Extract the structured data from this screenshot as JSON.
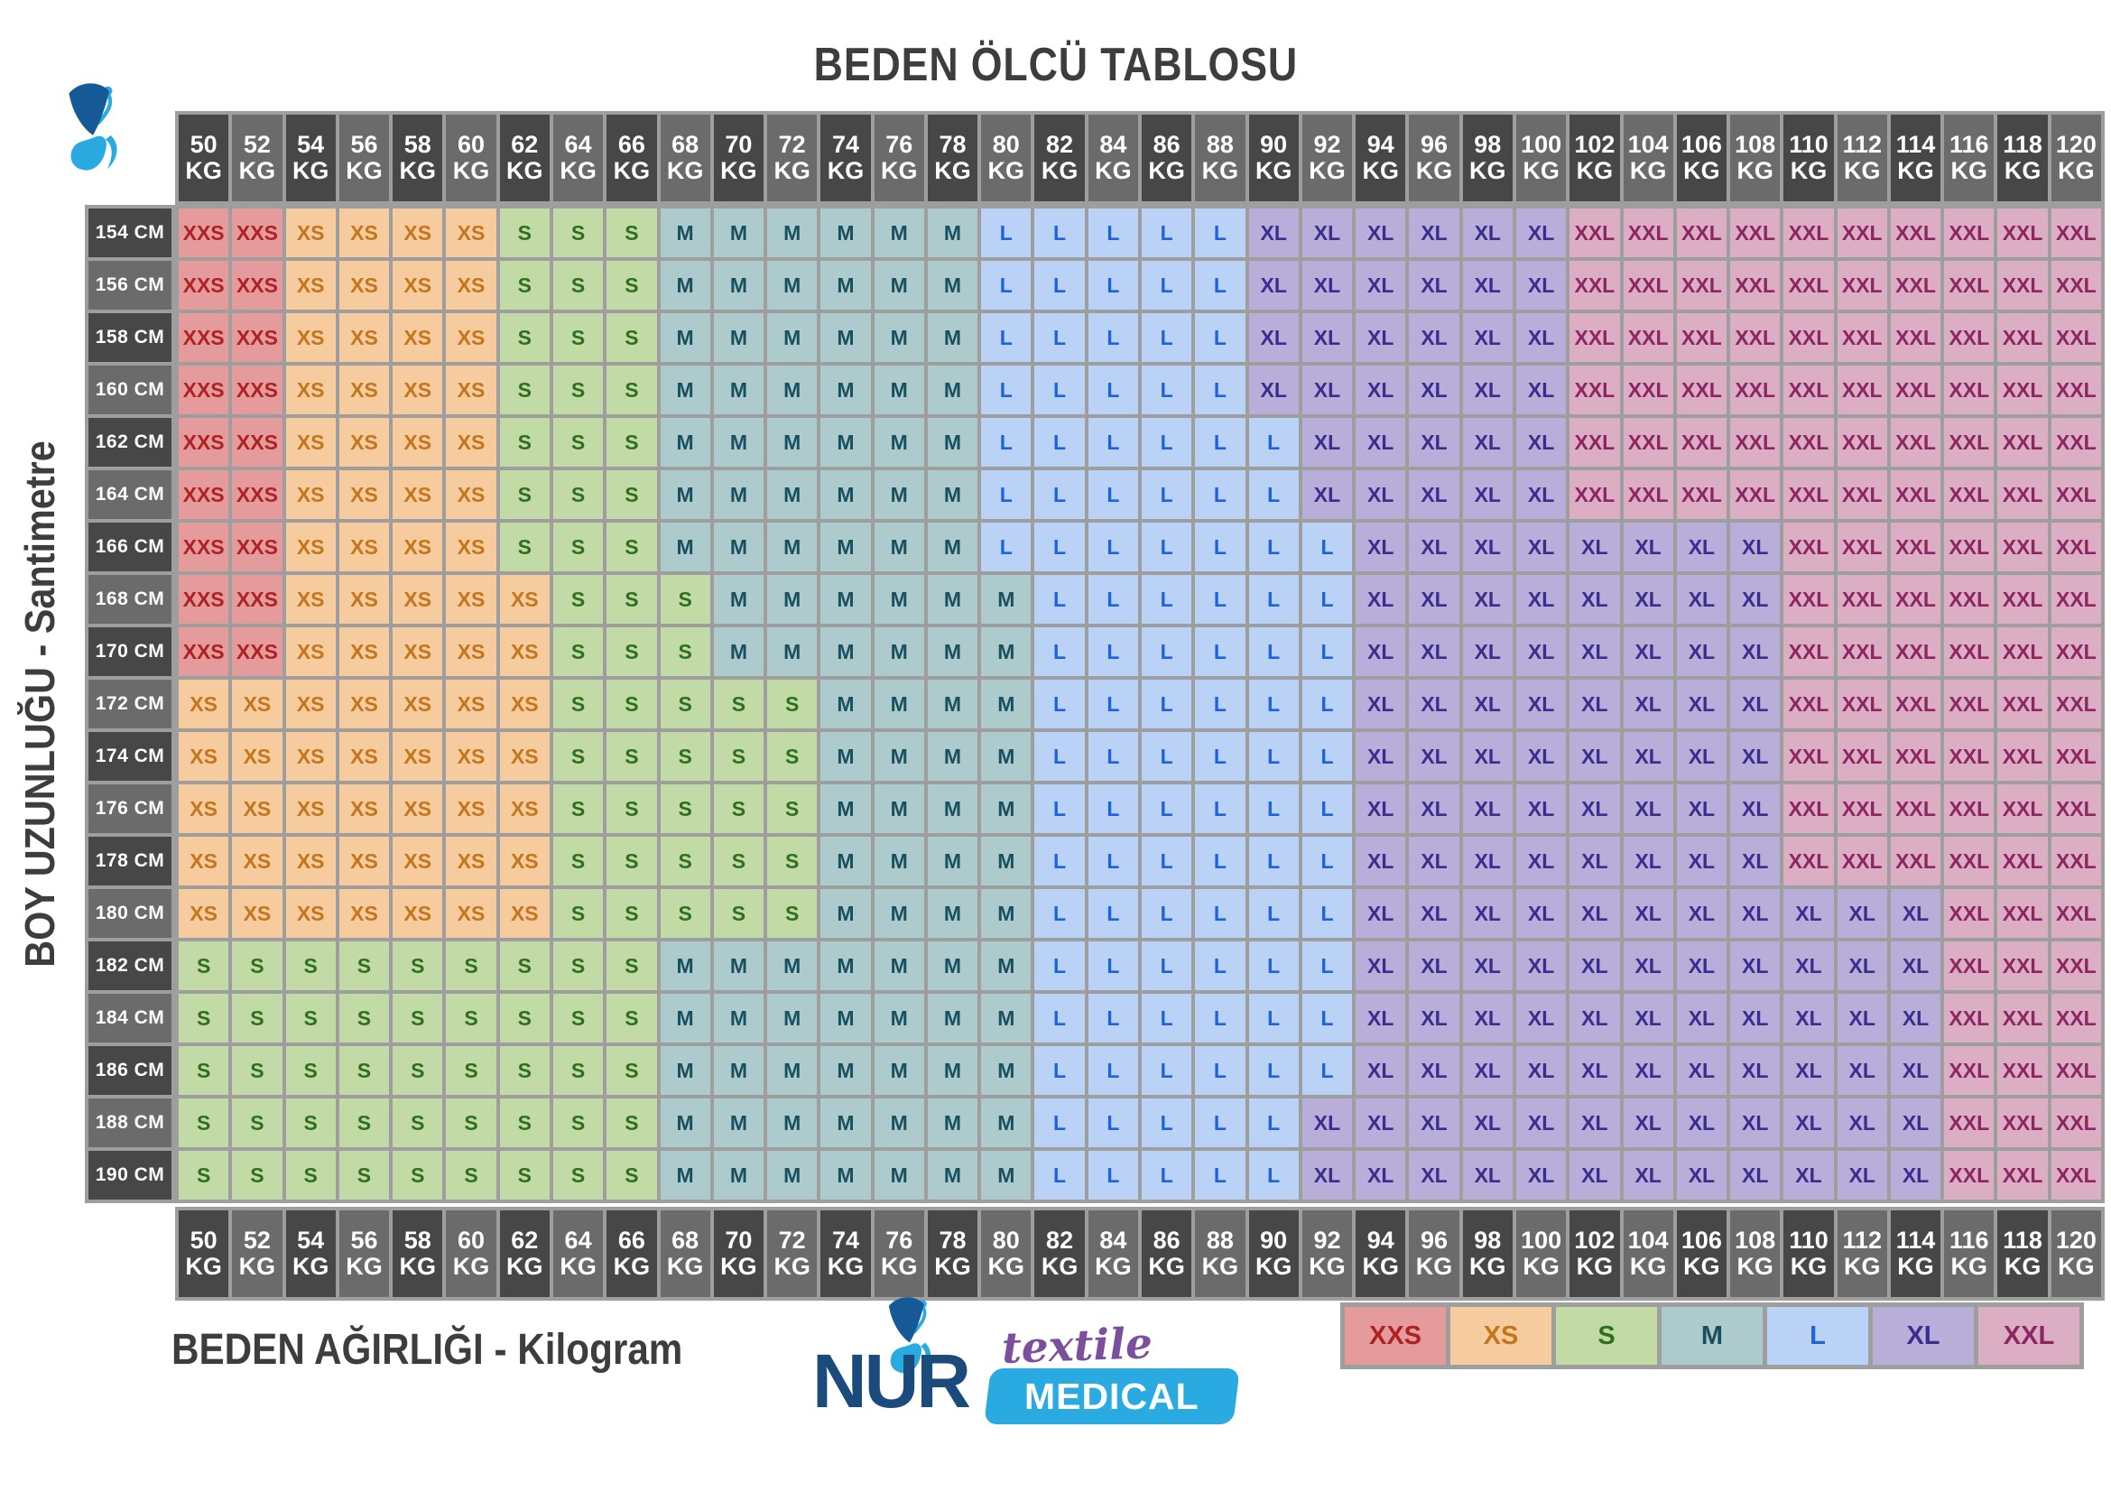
{
  "chart_data": {
    "type": "heatmap",
    "title": "BEDEN ÖLCÜ TABLOSU",
    "xlabel": "BEDEN AĞIRLIĞI - Kilogram",
    "ylabel": "BOY UZUNLUĞU - Santimetre",
    "x_unit": "KG",
    "y_unit": "CM",
    "x_categories": [
      50,
      52,
      54,
      56,
      58,
      60,
      62,
      64,
      66,
      68,
      70,
      72,
      74,
      76,
      78,
      80,
      82,
      84,
      86,
      88,
      90,
      92,
      94,
      96,
      98,
      100,
      102,
      104,
      106,
      108,
      110,
      112,
      114,
      116,
      118,
      120
    ],
    "y_categories": [
      154,
      156,
      158,
      160,
      162,
      164,
      166,
      168,
      170,
      172,
      174,
      176,
      178,
      180,
      182,
      184,
      186,
      188,
      190
    ],
    "legend": [
      "XXS",
      "XS",
      "S",
      "M",
      "L",
      "XL",
      "XXL"
    ],
    "legend_position": "bottom-right",
    "matrix": [
      [
        "XXS",
        "XXS",
        "XS",
        "XS",
        "XS",
        "XS",
        "S",
        "S",
        "S",
        "M",
        "M",
        "M",
        "M",
        "M",
        "M",
        "L",
        "L",
        "L",
        "L",
        "L",
        "XL",
        "XL",
        "XL",
        "XL",
        "XL",
        "XL",
        "XXL",
        "XXL",
        "XXL",
        "XXL",
        "XXL",
        "XXL",
        "XXL",
        "XXL",
        "XXL",
        "XXL"
      ],
      [
        "XXS",
        "XXS",
        "XS",
        "XS",
        "XS",
        "XS",
        "S",
        "S",
        "S",
        "M",
        "M",
        "M",
        "M",
        "M",
        "M",
        "L",
        "L",
        "L",
        "L",
        "L",
        "XL",
        "XL",
        "XL",
        "XL",
        "XL",
        "XL",
        "XXL",
        "XXL",
        "XXL",
        "XXL",
        "XXL",
        "XXL",
        "XXL",
        "XXL",
        "XXL",
        "XXL"
      ],
      [
        "XXS",
        "XXS",
        "XS",
        "XS",
        "XS",
        "XS",
        "S",
        "S",
        "S",
        "M",
        "M",
        "M",
        "M",
        "M",
        "M",
        "L",
        "L",
        "L",
        "L",
        "L",
        "XL",
        "XL",
        "XL",
        "XL",
        "XL",
        "XL",
        "XXL",
        "XXL",
        "XXL",
        "XXL",
        "XXL",
        "XXL",
        "XXL",
        "XXL",
        "XXL",
        "XXL"
      ],
      [
        "XXS",
        "XXS",
        "XS",
        "XS",
        "XS",
        "XS",
        "S",
        "S",
        "S",
        "M",
        "M",
        "M",
        "M",
        "M",
        "M",
        "L",
        "L",
        "L",
        "L",
        "L",
        "XL",
        "XL",
        "XL",
        "XL",
        "XL",
        "XL",
        "XXL",
        "XXL",
        "XXL",
        "XXL",
        "XXL",
        "XXL",
        "XXL",
        "XXL",
        "XXL",
        "XXL"
      ],
      [
        "XXS",
        "XXS",
        "XS",
        "XS",
        "XS",
        "XS",
        "S",
        "S",
        "S",
        "M",
        "M",
        "M",
        "M",
        "M",
        "M",
        "L",
        "L",
        "L",
        "L",
        "L",
        "L",
        "XL",
        "XL",
        "XL",
        "XL",
        "XL",
        "XXL",
        "XXL",
        "XXL",
        "XXL",
        "XXL",
        "XXL",
        "XXL",
        "XXL",
        "XXL",
        "XXL"
      ],
      [
        "XXS",
        "XXS",
        "XS",
        "XS",
        "XS",
        "XS",
        "S",
        "S",
        "S",
        "M",
        "M",
        "M",
        "M",
        "M",
        "M",
        "L",
        "L",
        "L",
        "L",
        "L",
        "L",
        "XL",
        "XL",
        "XL",
        "XL",
        "XL",
        "XXL",
        "XXL",
        "XXL",
        "XXL",
        "XXL",
        "XXL",
        "XXL",
        "XXL",
        "XXL",
        "XXL"
      ],
      [
        "XXS",
        "XXS",
        "XS",
        "XS",
        "XS",
        "XS",
        "S",
        "S",
        "S",
        "M",
        "M",
        "M",
        "M",
        "M",
        "M",
        "L",
        "L",
        "L",
        "L",
        "L",
        "L",
        "L",
        "XL",
        "XL",
        "XL",
        "XL",
        "XL",
        "XL",
        "XL",
        "XL",
        "XXL",
        "XXL",
        "XXL",
        "XXL",
        "XXL",
        "XXL"
      ],
      [
        "XXS",
        "XXS",
        "XS",
        "XS",
        "XS",
        "XS",
        "XS",
        "S",
        "S",
        "S",
        "M",
        "M",
        "M",
        "M",
        "M",
        "M",
        "L",
        "L",
        "L",
        "L",
        "L",
        "L",
        "XL",
        "XL",
        "XL",
        "XL",
        "XL",
        "XL",
        "XL",
        "XL",
        "XXL",
        "XXL",
        "XXL",
        "XXL",
        "XXL",
        "XXL"
      ],
      [
        "XXS",
        "XXS",
        "XS",
        "XS",
        "XS",
        "XS",
        "XS",
        "S",
        "S",
        "S",
        "M",
        "M",
        "M",
        "M",
        "M",
        "M",
        "L",
        "L",
        "L",
        "L",
        "L",
        "L",
        "XL",
        "XL",
        "XL",
        "XL",
        "XL",
        "XL",
        "XL",
        "XL",
        "XXL",
        "XXL",
        "XXL",
        "XXL",
        "XXL",
        "XXL"
      ],
      [
        "XS",
        "XS",
        "XS",
        "XS",
        "XS",
        "XS",
        "XS",
        "S",
        "S",
        "S",
        "S",
        "S",
        "M",
        "M",
        "M",
        "M",
        "L",
        "L",
        "L",
        "L",
        "L",
        "L",
        "XL",
        "XL",
        "XL",
        "XL",
        "XL",
        "XL",
        "XL",
        "XL",
        "XXL",
        "XXL",
        "XXL",
        "XXL",
        "XXL",
        "XXL"
      ],
      [
        "XS",
        "XS",
        "XS",
        "XS",
        "XS",
        "XS",
        "XS",
        "S",
        "S",
        "S",
        "S",
        "S",
        "M",
        "M",
        "M",
        "M",
        "L",
        "L",
        "L",
        "L",
        "L",
        "L",
        "XL",
        "XL",
        "XL",
        "XL",
        "XL",
        "XL",
        "XL",
        "XL",
        "XXL",
        "XXL",
        "XXL",
        "XXL",
        "XXL",
        "XXL"
      ],
      [
        "XS",
        "XS",
        "XS",
        "XS",
        "XS",
        "XS",
        "XS",
        "S",
        "S",
        "S",
        "S",
        "S",
        "M",
        "M",
        "M",
        "M",
        "L",
        "L",
        "L",
        "L",
        "L",
        "L",
        "XL",
        "XL",
        "XL",
        "XL",
        "XL",
        "XL",
        "XL",
        "XL",
        "XXL",
        "XXL",
        "XXL",
        "XXL",
        "XXL",
        "XXL"
      ],
      [
        "XS",
        "XS",
        "XS",
        "XS",
        "XS",
        "XS",
        "XS",
        "S",
        "S",
        "S",
        "S",
        "S",
        "M",
        "M",
        "M",
        "M",
        "L",
        "L",
        "L",
        "L",
        "L",
        "L",
        "XL",
        "XL",
        "XL",
        "XL",
        "XL",
        "XL",
        "XL",
        "XL",
        "XXL",
        "XXL",
        "XXL",
        "XXL",
        "XXL",
        "XXL"
      ],
      [
        "XS",
        "XS",
        "XS",
        "XS",
        "XS",
        "XS",
        "XS",
        "S",
        "S",
        "S",
        "S",
        "S",
        "M",
        "M",
        "M",
        "M",
        "L",
        "L",
        "L",
        "L",
        "L",
        "L",
        "XL",
        "XL",
        "XL",
        "XL",
        "XL",
        "XL",
        "XL",
        "XL",
        "XL",
        "XL",
        "XL",
        "XXL",
        "XXL",
        "XXL"
      ],
      [
        "S",
        "S",
        "S",
        "S",
        "S",
        "S",
        "S",
        "S",
        "S",
        "M",
        "M",
        "M",
        "M",
        "M",
        "M",
        "M",
        "L",
        "L",
        "L",
        "L",
        "L",
        "L",
        "XL",
        "XL",
        "XL",
        "XL",
        "XL",
        "XL",
        "XL",
        "XL",
        "XL",
        "XL",
        "XL",
        "XXL",
        "XXL",
        "XXL"
      ],
      [
        "S",
        "S",
        "S",
        "S",
        "S",
        "S",
        "S",
        "S",
        "S",
        "M",
        "M",
        "M",
        "M",
        "M",
        "M",
        "M",
        "L",
        "L",
        "L",
        "L",
        "L",
        "L",
        "XL",
        "XL",
        "XL",
        "XL",
        "XL",
        "XL",
        "XL",
        "XL",
        "XL",
        "XL",
        "XL",
        "XXL",
        "XXL",
        "XXL"
      ],
      [
        "S",
        "S",
        "S",
        "S",
        "S",
        "S",
        "S",
        "S",
        "S",
        "M",
        "M",
        "M",
        "M",
        "M",
        "M",
        "M",
        "L",
        "L",
        "L",
        "L",
        "L",
        "L",
        "XL",
        "XL",
        "XL",
        "XL",
        "XL",
        "XL",
        "XL",
        "XL",
        "XL",
        "XL",
        "XL",
        "XXL",
        "XXL",
        "XXL"
      ],
      [
        "S",
        "S",
        "S",
        "S",
        "S",
        "S",
        "S",
        "S",
        "S",
        "M",
        "M",
        "M",
        "M",
        "M",
        "M",
        "M",
        "L",
        "L",
        "L",
        "L",
        "L",
        "XL",
        "XL",
        "XL",
        "XL",
        "XL",
        "XL",
        "XL",
        "XL",
        "XL",
        "XL",
        "XL",
        "XL",
        "XXL",
        "XXL",
        "XXL"
      ],
      [
        "S",
        "S",
        "S",
        "S",
        "S",
        "S",
        "S",
        "S",
        "S",
        "M",
        "M",
        "M",
        "M",
        "M",
        "M",
        "M",
        "L",
        "L",
        "L",
        "L",
        "L",
        "XL",
        "XL",
        "XL",
        "XL",
        "XL",
        "XL",
        "XL",
        "XL",
        "XL",
        "XL",
        "XL",
        "XL",
        "XXL",
        "XXL",
        "XXL"
      ]
    ]
  },
  "palette": {
    "frame": "#9e9e9e",
    "header_dark": "#474747",
    "header_mid": "#6b6b6b",
    "header_text": "#ffffff",
    "axis_text": "#3d3d3d",
    "sizes": {
      "XXS": {
        "bg": "#e59a9b",
        "fg": "#ae2223"
      },
      "XS": {
        "bg": "#f6cb9d",
        "fg": "#c4761d"
      },
      "S": {
        "bg": "#c2dba6",
        "fg": "#2f701f"
      },
      "M": {
        "bg": "#adcbcc",
        "fg": "#19505f"
      },
      "L": {
        "bg": "#b9d2f6",
        "fg": "#1e63dc"
      },
      "XL": {
        "bg": "#b9aeda",
        "fg": "#3b2d8d"
      },
      "XXL": {
        "bg": "#dcaec4",
        "fg": "#8e2563"
      }
    },
    "logo_navy": "#1b4b7d",
    "logo_blue": "#29abe2",
    "logo_purple": "#7b4f9b"
  },
  "logo": {
    "brand": "NUR",
    "sub1": "textile",
    "sub2": "MEDICAL"
  }
}
